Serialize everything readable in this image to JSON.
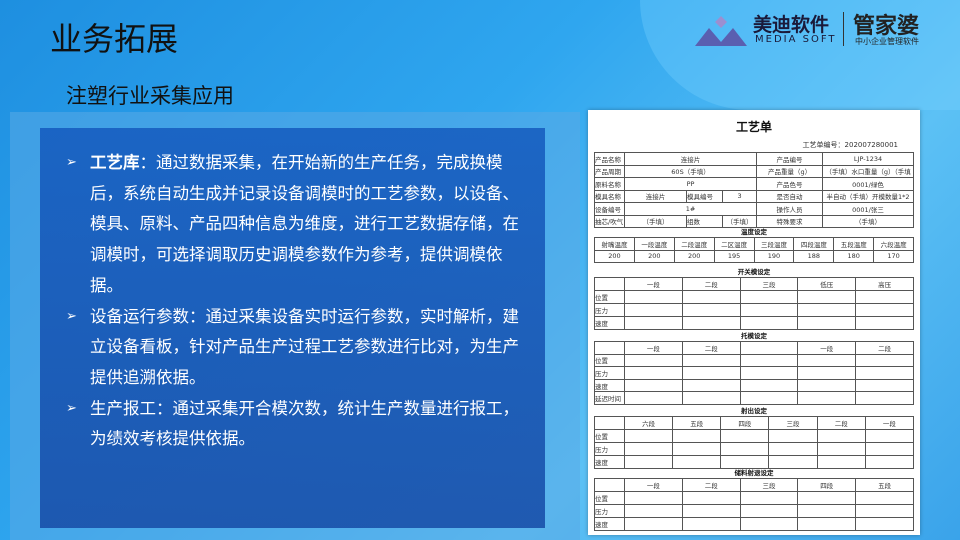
{
  "title": "业务拓展",
  "subtitle": "注塑行业采集应用",
  "logo": {
    "cn": "美迪软件",
    "en": "MEDIA SOFT",
    "brand": "管家婆",
    "slogan": "中小企业管理软件"
  },
  "bullets": [
    {
      "head": "工艺库",
      "text": "：通过数据采集，在开始新的生产任务，完成换模后，系统自动生成并记录设备调模时的工艺参数，以设备、模具、原料、产品四种信息为维度，进行工艺数据存储，在调模时，可选择调取历史调模参数作为参考，提供调模依据。"
    },
    {
      "head": "",
      "text": "设备运行参数：通过采集设备实时运行参数，实时解析，建立设备看板，针对产品生产过程工艺参数进行比对，为生产提供追溯依据。"
    },
    {
      "head": "",
      "text": "生产报工：通过采集开合模次数，统计生产数量进行报工，为绩效考核提供依据。"
    }
  ],
  "doc": {
    "title": "工艺单",
    "number": "工艺单编号：202007280001",
    "info": [
      [
        "产品名称",
        "连接片",
        "",
        "",
        "产品编号",
        "LJP-1234"
      ],
      [
        "产品周期",
        "60S（手填）",
        "",
        "",
        "产品重量（g）",
        "（手填）水口重量（g）（手填"
      ],
      [
        "原料名称",
        "PP",
        "",
        "",
        "产品色号",
        "0001/绿色"
      ],
      [
        "模具名称",
        "连接片",
        "模具编号",
        "3",
        "是否自动",
        "半自动（手填）开模数量1*2"
      ],
      [
        "设备编号",
        "1#",
        "",
        "",
        "操作人员",
        "0001/张三"
      ],
      [
        "抽芯/吹气",
        "（手填）",
        "组数",
        "（手填）",
        "特殊要求",
        "（手填）"
      ]
    ],
    "temp_title": "温度设定",
    "temp_head": [
      "射嘴温度",
      "一段温度",
      "二段温度",
      "二区温度",
      "三段温度",
      "四段温度",
      "五段温度",
      "六段温度"
    ],
    "temp_vals": [
      "200",
      "200",
      "200",
      "195",
      "190",
      "188",
      "180",
      "170"
    ],
    "open": {
      "title": "开关模设定",
      "cols": [
        "一段",
        "二段",
        "三段",
        "低压",
        "高压"
      ],
      "rows": [
        "位置",
        "压力",
        "速度"
      ]
    },
    "eject": {
      "title": "托模设定",
      "cols": [
        "一段",
        "二段",
        "",
        "一段",
        "二段"
      ],
      "rows": [
        "位置",
        "压力",
        "速度",
        "延迟时间"
      ]
    },
    "inject": {
      "title": "射出设定",
      "cols": [
        "六段",
        "五段",
        "四段",
        "三段",
        "二段",
        "一段"
      ],
      "rows": [
        "位置",
        "压力",
        "速度"
      ]
    },
    "store": {
      "title": "储料射退设定",
      "cols": [
        "一段",
        "二段",
        "三段",
        "四段",
        "五段"
      ],
      "rows": [
        "位置",
        "压力",
        "速度"
      ]
    }
  }
}
